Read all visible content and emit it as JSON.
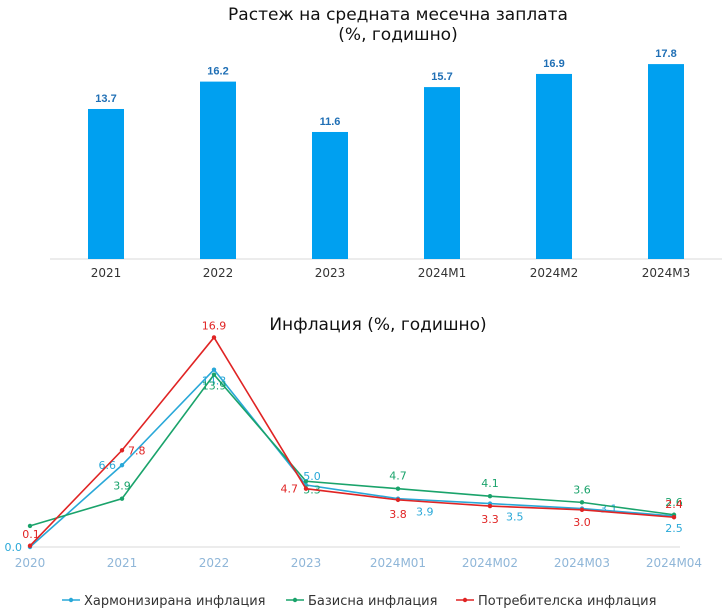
{
  "chart_data": [
    {
      "type": "bar",
      "title": "Растеж на средната месечна заплата",
      "subtitle": "(%, годишно)",
      "categories": [
        "2021",
        "2022",
        "2023",
        "2024M1",
        "2024M2",
        "2024M3"
      ],
      "values": [
        13.7,
        16.2,
        11.6,
        15.7,
        16.9,
        17.8
      ],
      "value_labels": [
        "13.7",
        "16.2",
        "11.6",
        "15.7",
        "16.9",
        "17.8"
      ],
      "ylim": [
        0,
        20
      ],
      "color": "#00a0f0",
      "label_color": "#1f6fb5",
      "grid": false
    },
    {
      "type": "line",
      "title": "Инфлация (%, годишно)",
      "categories": [
        "2020",
        "2021",
        "2022",
        "2023",
        "2024M01",
        "2024M02",
        "2024M03",
        "2024M04"
      ],
      "ylim": [
        0,
        17.5
      ],
      "grid": false,
      "legend_position": "bottom",
      "series": [
        {
          "name": "Хармонизирана инфлация",
          "color": "#29a8d8",
          "values": [
            0.0,
            6.6,
            14.3,
            5.0,
            3.9,
            3.5,
            3.1,
            2.5
          ],
          "labels": [
            "0.0",
            "6.6",
            "14.3",
            "",
            "3.9",
            "3.5",
            "3.1",
            "2.5"
          ]
        },
        {
          "name": "Базисна инфлация",
          "color": "#1aa36b",
          "values": [
            1.7,
            3.9,
            13.9,
            5.3,
            4.7,
            4.1,
            3.6,
            2.6
          ],
          "labels": [
            "",
            "3.9",
            "13.9",
            "5.3",
            "4.7",
            "4.1",
            "3.6",
            "2.6"
          ]
        },
        {
          "name": "Потребителска инфлация",
          "color": "#e02424",
          "values": [
            0.1,
            7.8,
            16.9,
            4.7,
            3.8,
            3.3,
            3.0,
            2.4
          ],
          "labels": [
            "0.1",
            "7.8",
            "16.9",
            "4.7",
            "3.8",
            "3.3",
            "3.0",
            "2.4"
          ]
        }
      ],
      "extra_labels": [
        "5.0"
      ]
    }
  ]
}
